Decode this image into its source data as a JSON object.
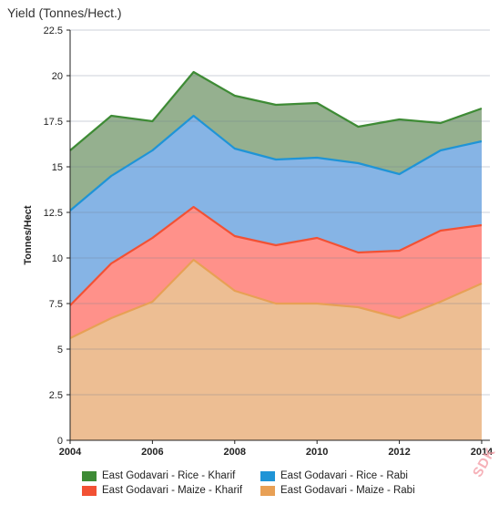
{
  "chart_data": {
    "type": "area",
    "stacked": true,
    "title": "Yield (Tonnes/Hect.)",
    "xlabel": "",
    "ylabel": "Tonnes/Hect",
    "x": [
      2004,
      2005,
      2006,
      2007,
      2008,
      2009,
      2010,
      2011,
      2012,
      2013,
      2014
    ],
    "xticks": [
      "2004",
      "2006",
      "2008",
      "2010",
      "2012",
      "2014"
    ],
    "yticks": [
      "0",
      "2.5",
      "5",
      "7.5",
      "10",
      "12.5",
      "15",
      "17.5",
      "20",
      "22.5"
    ],
    "xlim": [
      2004,
      2014.2
    ],
    "ylim": [
      0,
      22.5
    ],
    "grid": true,
    "legend_position": "bottom",
    "series": [
      {
        "name": "East Godavari - Maize - Rabi",
        "color": "#E8A055",
        "fill": "#EDBE93",
        "values": [
          5.6,
          6.7,
          7.6,
          9.9,
          8.2,
          7.5,
          7.5,
          7.3,
          6.7,
          7.6,
          8.6
        ]
      },
      {
        "name": "East Godavari - Maize - Kharif",
        "color": "#F25134",
        "fill": "#FF918A",
        "values": [
          1.8,
          3.0,
          3.5,
          2.9,
          3.0,
          3.2,
          3.6,
          3.0,
          3.7,
          3.9,
          3.2
        ]
      },
      {
        "name": "East Godavari - Rice - Rabi",
        "color": "#1F94D6",
        "fill": "#86B4E5",
        "values": [
          5.2,
          4.8,
          4.8,
          5.0,
          4.8,
          4.7,
          4.4,
          4.9,
          4.2,
          4.4,
          4.6
        ]
      },
      {
        "name": "East Godavari - Rice - Kharif",
        "color": "#3E8B35",
        "fill": "#95B08F",
        "values": [
          3.3,
          3.3,
          1.6,
          2.4,
          2.9,
          3.0,
          3.0,
          2.0,
          3.0,
          1.5,
          1.8
        ]
      }
    ],
    "legend_order": [
      "East Godavari - Rice - Kharif",
      "East Godavari - Rice - Rabi",
      "East Godavari - Maize - Kharif",
      "East Godavari - Maize - Rabi"
    ]
  },
  "watermark": "SDK"
}
